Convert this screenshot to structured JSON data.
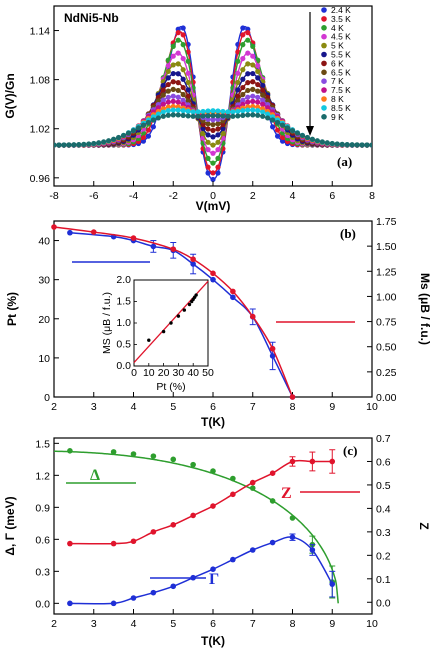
{
  "chart_data": [
    {
      "type": "line",
      "panel_label": "(a)",
      "annotation": "NdNi5-Nb",
      "xlabel": "V(mV)",
      "ylabel": "G(V)/Gn",
      "xlim": [
        -8,
        8
      ],
      "ylim": [
        0.95,
        1.17
      ],
      "xticks": [
        -8,
        -6,
        -4,
        -2,
        0,
        2,
        4,
        6,
        8
      ],
      "yticks": [
        0.96,
        1.02,
        1.08,
        1.14
      ],
      "legend": "top-right",
      "arrow": "down",
      "series": [
        {
          "name": "2.4 K",
          "color": "#1f2fd6",
          "peak": 1.148,
          "center": 0.958
        },
        {
          "name": "3.5 K",
          "color": "#e0142c",
          "peak": 1.142,
          "center": 0.966
        },
        {
          "name": "4 K",
          "color": "#2e9e2e",
          "peak": 1.132,
          "center": 0.978
        },
        {
          "name": "4.5 K",
          "color": "#d238d2",
          "peak": 1.116,
          "center": 0.99
        },
        {
          "name": "5 K",
          "color": "#8a8a10",
          "peak": 1.103,
          "center": 1.0
        },
        {
          "name": "5.5 K",
          "color": "#17168c",
          "peak": 1.091,
          "center": 1.01
        },
        {
          "name": "6 K",
          "color": "#8c1414",
          "peak": 1.08,
          "center": 1.018
        },
        {
          "name": "6.5 K",
          "color": "#6b4a14",
          "peak": 1.07,
          "center": 1.025
        },
        {
          "name": "7 K",
          "color": "#8a4ce0",
          "peak": 1.061,
          "center": 1.031
        },
        {
          "name": "7.5 K",
          "color": "#c0108a",
          "peak": 1.054,
          "center": 1.036
        },
        {
          "name": "8 K",
          "color": "#ff7a1a",
          "peak": 1.047,
          "center": 1.04
        },
        {
          "name": "8.5 K",
          "color": "#14c8e0",
          "peak": 1.042,
          "center": 1.042
        },
        {
          "name": "9 K",
          "color": "#1a6b6b",
          "peak": 1.036,
          "center": 1.036
        }
      ]
    },
    {
      "type": "line",
      "panel_label": "(b)",
      "xlabel": "T(K)",
      "ylabel_left": "Pt (%)",
      "ylabel_right": "Ms (μB / f.u.)",
      "xlim": [
        2,
        10
      ],
      "ylim_left": [
        0,
        45
      ],
      "ylim_right": [
        0,
        1.75
      ],
      "xticks": [
        2,
        3,
        4,
        5,
        6,
        7,
        8,
        9,
        10
      ],
      "yticks_left": [
        0,
        10,
        20,
        30,
        40
      ],
      "yticks_right": [
        0.0,
        0.25,
        0.5,
        0.75,
        1.0,
        1.25,
        1.5,
        1.75
      ],
      "series": [
        {
          "name": "Pt",
          "axis": "left",
          "color": "#1f2fd6",
          "x": [
            2.4,
            3.5,
            4.0,
            4.5,
            5.0,
            5.5,
            6.0,
            6.5,
            7.0,
            7.5,
            8.0
          ],
          "y": [
            42,
            41,
            40,
            38.5,
            37.5,
            34,
            30,
            25.5,
            20.5,
            10.5,
            0
          ],
          "err": [
            0,
            0,
            0,
            1.5,
            2,
            2.5,
            0,
            0,
            2,
            3.5,
            0
          ]
        },
        {
          "name": "Ms",
          "axis": "right",
          "color": "#e0142c",
          "x": [
            2.0,
            3.0,
            4.0,
            5.0,
            5.5,
            6.0,
            6.5,
            7.0,
            7.5,
            8.0
          ],
          "y": [
            1.69,
            1.64,
            1.58,
            1.47,
            1.37,
            1.23,
            1.05,
            0.8,
            0.48,
            0.0
          ]
        }
      ],
      "inset": {
        "xlabel": "Pt (%)",
        "ylabel": "MS (μB / f.u.)",
        "xlim": [
          0,
          50
        ],
        "ylim": [
          0,
          2.0
        ],
        "xticks": [
          0,
          10,
          20,
          30,
          40,
          50
        ],
        "yticks": [
          0.0,
          0.5,
          1.0,
          1.5,
          2.0
        ],
        "x": [
          10,
          20,
          25,
          30,
          34,
          37.5,
          39,
          40,
          41,
          42
        ],
        "y": [
          0.6,
          0.8,
          1.0,
          1.16,
          1.3,
          1.43,
          1.5,
          1.55,
          1.6,
          1.65
        ],
        "fit_x": [
          0,
          50
        ],
        "fit_y": [
          0.08,
          1.97
        ]
      }
    },
    {
      "type": "line",
      "panel_label": "(c)",
      "xlabel": "T(K)",
      "ylabel_left": "Δ, Γ (meV)",
      "ylabel_right": "Z",
      "xlim": [
        2,
        10
      ],
      "ylim_left": [
        -0.1,
        1.55
      ],
      "ylim_right": [
        -0.05,
        0.7
      ],
      "xticks": [
        2,
        3,
        4,
        5,
        6,
        7,
        8,
        9,
        10
      ],
      "yticks_left": [
        0.0,
        0.3,
        0.6,
        0.9,
        1.2,
        1.5
      ],
      "yticks_right": [
        0.0,
        0.1,
        0.2,
        0.3,
        0.4,
        0.5,
        0.6,
        0.7
      ],
      "series": [
        {
          "name": "Δ",
          "axis": "left",
          "color": "#2e9e2e",
          "x": [
            2.4,
            3.5,
            4.0,
            4.5,
            5.0,
            5.5,
            6.0,
            6.5,
            7.0,
            7.5,
            8.0,
            8.5,
            9.0
          ],
          "y": [
            1.43,
            1.42,
            1.4,
            1.38,
            1.35,
            1.3,
            1.24,
            1.17,
            1.08,
            0.96,
            0.8,
            0.55,
            0.2
          ],
          "err": [
            0,
            0,
            0,
            0,
            0,
            0,
            0,
            0,
            0,
            0,
            0,
            0.08,
            0.15
          ]
        },
        {
          "name": "Z",
          "axis": "right",
          "color": "#e0142c",
          "x": [
            2.4,
            3.5,
            4.0,
            4.5,
            5.0,
            5.5,
            6.0,
            6.5,
            7.0,
            7.5,
            8.0,
            8.5,
            9.0
          ],
          "y": [
            0.25,
            0.25,
            0.26,
            0.3,
            0.33,
            0.37,
            0.41,
            0.46,
            0.51,
            0.55,
            0.6,
            0.6,
            0.6
          ],
          "err": [
            0,
            0,
            0,
            0,
            0,
            0,
            0,
            0,
            0,
            0,
            0.02,
            0.04,
            0.05
          ]
        },
        {
          "name": "Γ",
          "axis": "left",
          "color": "#1f2fd6",
          "x": [
            2.4,
            3.5,
            4.0,
            4.5,
            5.0,
            5.5,
            6.0,
            6.5,
            7.0,
            7.5,
            8.0,
            8.5,
            9.0
          ],
          "y": [
            0.0,
            0.0,
            0.05,
            0.1,
            0.16,
            0.24,
            0.32,
            0.41,
            0.5,
            0.57,
            0.62,
            0.5,
            0.18
          ],
          "err": [
            0,
            0,
            0,
            0,
            0,
            0,
            0,
            0,
            0,
            0,
            0.03,
            0.05,
            0.12
          ]
        }
      ]
    }
  ]
}
